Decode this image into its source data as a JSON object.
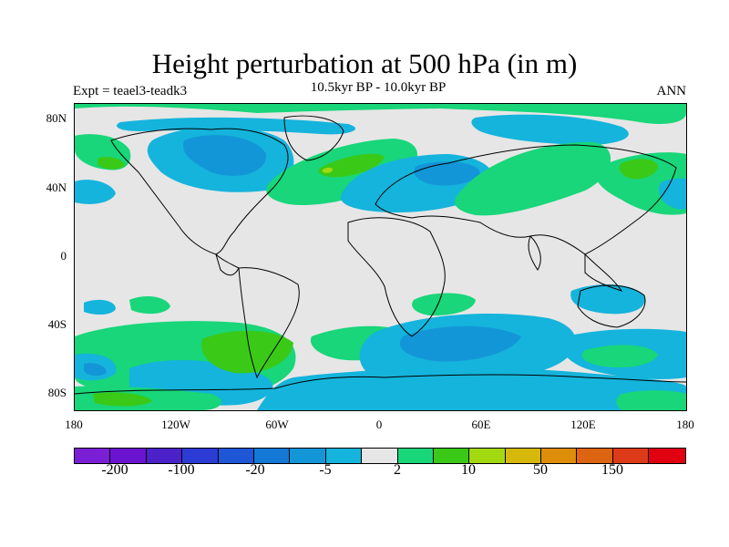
{
  "title": "Height perturbation at 500 hPa (in m)",
  "experiment": "Expt = teael3-teadk3",
  "period": "10.5kyr BP - 10.0kyr BP",
  "season": "ANN",
  "lat_labels": [
    "80N",
    "40N",
    "0",
    "40S",
    "80S"
  ],
  "lon_labels": [
    "180",
    "120W",
    "60W",
    "0",
    "60E",
    "120E",
    "180"
  ],
  "colorbar": {
    "colors": [
      "#7a1fd6",
      "#6a14d0",
      "#4b22c9",
      "#2c3bd4",
      "#1f56d6",
      "#1478d6",
      "#1396d8",
      "#15b4dc",
      "#e6e6e6",
      "#18d679",
      "#3bc918",
      "#a3d910",
      "#d6b80a",
      "#dd8d0a",
      "#dd6410",
      "#dd3a1a",
      "#e00010"
    ],
    "tick_labels": [
      "-200",
      "-100",
      "-20",
      "-5",
      "2",
      "10",
      "50",
      "150"
    ]
  }
}
